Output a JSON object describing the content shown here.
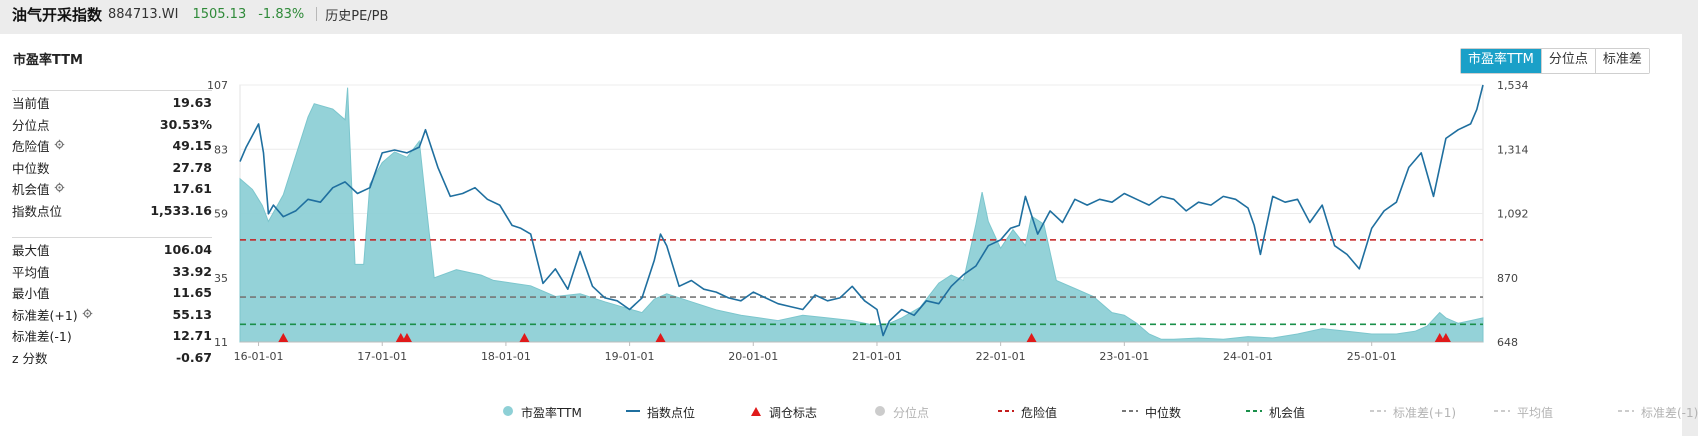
{
  "header": {
    "title": "油气开采指数",
    "code": "884713.WI",
    "price": "1505.13",
    "change": "-1.83%",
    "history_link": "历史PE/PB"
  },
  "panel": {
    "title": "市盈率TTM",
    "tabs": [
      {
        "label": "市盈率TTM",
        "active": true
      },
      {
        "label": "分位点",
        "active": false
      },
      {
        "label": "标准差",
        "active": false
      }
    ]
  },
  "stats_top": [
    {
      "label": "当前值",
      "value": "19.63",
      "gear": false
    },
    {
      "label": "分位点",
      "value": "30.53%",
      "gear": false
    },
    {
      "label": "危险值",
      "value": "49.15",
      "gear": true
    },
    {
      "label": "中位数",
      "value": "27.78",
      "gear": false
    },
    {
      "label": "机会值",
      "value": "17.61",
      "gear": true
    },
    {
      "label": "指数点位",
      "value": "1,533.16",
      "gear": false
    }
  ],
  "stats_bottom": [
    {
      "label": "最大值",
      "value": "106.04",
      "gear": false
    },
    {
      "label": "平均值",
      "value": "33.92",
      "gear": false
    },
    {
      "label": "最小值",
      "value": "11.65",
      "gear": false
    },
    {
      "label": "标准差(+1)",
      "value": "55.13",
      "gear": true
    },
    {
      "label": "标准差(-1)",
      "value": "12.71",
      "gear": false
    },
    {
      "label": "z 分数",
      "value": "-0.67",
      "gear": false
    }
  ],
  "legend": [
    {
      "label": "市盈率TTM",
      "kind": "dot",
      "color": "#8ed0d6",
      "active": true
    },
    {
      "label": "指数点位",
      "kind": "line",
      "color": "#1f6f9f",
      "active": true
    },
    {
      "label": "调仓标志",
      "kind": "triangle",
      "color": "#e01a1a",
      "active": true
    },
    {
      "label": "分位点",
      "kind": "dot",
      "color": "#cccccc",
      "active": false
    },
    {
      "label": "危险值",
      "kind": "dash",
      "color": "#c41d1d",
      "active": true
    },
    {
      "label": "中位数",
      "kind": "dash",
      "color": "#777777",
      "active": true
    },
    {
      "label": "机会值",
      "kind": "dash",
      "color": "#1a8f4a",
      "active": true
    },
    {
      "label": "标准差(+1)",
      "kind": "dash",
      "color": "#cccccc",
      "active": false
    },
    {
      "label": "平均值",
      "kind": "dash",
      "color": "#cccccc",
      "active": false
    },
    {
      "label": "标准差(-1)",
      "kind": "dash",
      "color": "#cccccc",
      "active": false
    }
  ],
  "colors": {
    "pe_fill": "#8ed0d6",
    "index_line": "#1f6f9f",
    "danger": "#c41d1d",
    "median": "#777777",
    "opportunity": "#1a8f4a",
    "marker": "#e01a1a"
  },
  "chart_data": {
    "type": "area",
    "x_tick_labels": [
      "16-01-01",
      "17-01-01",
      "18-01-01",
      "19-01-01",
      "20-01-01",
      "21-01-01",
      "22-01-01",
      "23-01-01",
      "24-01-01",
      "25-01-01"
    ],
    "x_range": [
      2015.85,
      2025.9
    ],
    "left_axis": {
      "ticks": [
        "107",
        "83",
        "59",
        "35",
        "11"
      ],
      "range": [
        11,
        107
      ]
    },
    "right_axis": {
      "ticks": [
        "1,534",
        "1,314",
        "1,092",
        "870",
        "648"
      ],
      "range": [
        648,
        1534
      ]
    },
    "reference_lines": {
      "danger": 49.15,
      "median": 27.78,
      "opportunity": 17.61
    },
    "series": [
      {
        "name": "市盈率TTM",
        "axis": "left",
        "x": [
          2015.85,
          2015.95,
          2016.03,
          2016.08,
          2016.2,
          2016.4,
          2016.45,
          2016.6,
          2016.7,
          2016.72,
          2016.78,
          2016.85,
          2016.9,
          2017.0,
          2017.1,
          2017.2,
          2017.3,
          2017.36,
          2017.42,
          2017.6,
          2017.8,
          2017.9,
          2018.05,
          2018.2,
          2018.4,
          2018.6,
          2018.8,
          2018.95,
          2019.1,
          2019.2,
          2019.3,
          2019.5,
          2019.7,
          2019.9,
          2020.05,
          2020.2,
          2020.4,
          2020.6,
          2020.8,
          2021.0,
          2021.1,
          2021.2,
          2021.35,
          2021.5,
          2021.6,
          2021.7,
          2021.8,
          2021.85,
          2021.9,
          2022.0,
          2022.1,
          2022.2,
          2022.25,
          2022.35,
          2022.45,
          2022.6,
          2022.75,
          2022.9,
          2023.0,
          2023.1,
          2023.2,
          2023.3,
          2023.4,
          2023.6,
          2023.8,
          2024.0,
          2024.2,
          2024.4,
          2024.6,
          2024.8,
          2025.0,
          2025.2,
          2025.35,
          2025.45,
          2025.55,
          2025.6,
          2025.7,
          2025.8,
          2025.9
        ],
        "values": [
          72,
          68,
          62,
          56,
          66,
          95,
          100,
          98,
          94,
          106,
          40,
          40,
          70,
          78,
          82,
          80,
          86,
          60,
          35,
          38,
          36,
          34,
          33,
          32,
          28,
          29,
          26,
          24,
          22,
          27,
          29,
          26,
          23,
          21,
          20,
          19,
          21,
          20,
          19,
          17,
          18,
          20,
          24,
          33,
          36,
          34,
          55,
          67,
          56,
          46,
          53,
          47,
          58,
          55,
          34,
          31,
          28,
          22,
          21,
          18,
          14,
          12,
          12,
          12.5,
          12,
          13,
          12.5,
          14,
          16,
          15,
          14,
          14,
          15,
          17,
          22,
          20,
          18,
          19,
          20
        ]
      },
      {
        "name": "指数点位",
        "axis": "right",
        "x": [
          2015.85,
          2015.9,
          2015.95,
          2016.0,
          2016.04,
          2016.08,
          2016.12,
          2016.2,
          2016.3,
          2016.4,
          2016.5,
          2016.6,
          2016.7,
          2016.8,
          2016.9,
          2017.0,
          2017.1,
          2017.2,
          2017.3,
          2017.35,
          2017.45,
          2017.55,
          2017.65,
          2017.75,
          2017.85,
          2017.95,
          2018.05,
          2018.12,
          2018.2,
          2018.3,
          2018.4,
          2018.5,
          2018.6,
          2018.7,
          2018.8,
          2018.9,
          2019.0,
          2019.1,
          2019.2,
          2019.25,
          2019.3,
          2019.4,
          2019.5,
          2019.6,
          2019.7,
          2019.8,
          2019.9,
          2020.0,
          2020.1,
          2020.2,
          2020.3,
          2020.4,
          2020.5,
          2020.6,
          2020.7,
          2020.8,
          2020.9,
          2021.0,
          2021.05,
          2021.1,
          2021.2,
          2021.3,
          2021.4,
          2021.5,
          2021.6,
          2021.7,
          2021.8,
          2021.9,
          2022.0,
          2022.08,
          2022.15,
          2022.2,
          2022.3,
          2022.4,
          2022.5,
          2022.6,
          2022.7,
          2022.8,
          2022.9,
          2023.0,
          2023.1,
          2023.2,
          2023.3,
          2023.4,
          2023.5,
          2023.6,
          2023.7,
          2023.8,
          2023.9,
          2024.0,
          2024.05,
          2024.1,
          2024.2,
          2024.3,
          2024.4,
          2024.5,
          2024.6,
          2024.7,
          2024.8,
          2024.9,
          2025.0,
          2025.1,
          2025.2,
          2025.3,
          2025.4,
          2025.5,
          2025.6,
          2025.7,
          2025.8,
          2025.85,
          2025.9
        ],
        "values": [
          1270,
          1320,
          1360,
          1400,
          1300,
          1090,
          1120,
          1080,
          1100,
          1140,
          1130,
          1180,
          1200,
          1160,
          1180,
          1300,
          1310,
          1300,
          1320,
          1380,
          1250,
          1150,
          1160,
          1180,
          1140,
          1120,
          1050,
          1040,
          1020,
          850,
          900,
          830,
          960,
          840,
          800,
          790,
          760,
          800,
          930,
          1020,
          980,
          840,
          860,
          830,
          820,
          800,
          790,
          820,
          800,
          780,
          770,
          760,
          810,
          790,
          800,
          840,
          790,
          760,
          670,
          720,
          760,
          740,
          790,
          780,
          840,
          880,
          910,
          980,
          1000,
          1040,
          1050,
          1150,
          1020,
          1100,
          1060,
          1140,
          1120,
          1140,
          1130,
          1160,
          1140,
          1120,
          1150,
          1140,
          1100,
          1130,
          1120,
          1150,
          1140,
          1110,
          1050,
          950,
          1150,
          1130,
          1140,
          1060,
          1120,
          980,
          950,
          900,
          1040,
          1100,
          1130,
          1250,
          1300,
          1150,
          1350,
          1380,
          1400,
          1450,
          1534
        ]
      }
    ],
    "rebalance_markers_x": [
      2016.2,
      2017.15,
      2017.2,
      2018.15,
      2019.25,
      2022.25,
      2025.55,
      2025.6
    ]
  }
}
